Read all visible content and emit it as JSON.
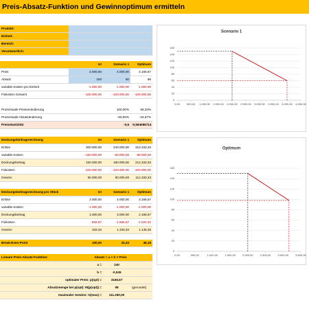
{
  "sheet": {
    "title": "Preis-Absatz-Funktion und Gewinnoptimum ermitteln",
    "info": [
      "Produkt:",
      "Einheit:",
      "Bereich:",
      "Verantwortlich:"
    ],
    "sections": [
      {
        "columns": [
          "Ist",
          "Szenario 1",
          "Optimum"
        ],
        "rows": [
          {
            "label": "Preis",
            "values": [
              "2.000,00",
              "4.000,00",
              "3.166,67"
            ]
          },
          {
            "label": "Absatz",
            "values": [
              "150",
              "60",
              "98"
            ]
          },
          {
            "label": "variable Kosten pro Einheit",
            "values": [
              "-1.000,00",
              "-1.000,00",
              "-1.000,00"
            ]
          },
          {
            "label": "Fixkosten Gesamt",
            "values": [
              "-100.000,00",
              "-100.000,00",
              "-100.000,00"
            ]
          }
        ]
      },
      {
        "rows": [
          {
            "label": "Prozentuale Preisveränderung",
            "values": [
              null,
              "100,00%",
              "58,33%"
            ]
          },
          {
            "label": "Prozentuale Absatzänderung",
            "values": [
              null,
              "-60,00%",
              "-34,67%"
            ]
          },
          {
            "label": "Preiselastizität",
            "values": [
              null,
              "-0,6",
              "-0,594085714"
            ]
          }
        ]
      },
      {
        "label": "Deckungsbeitragsrechnung",
        "columns": [
          "Ist",
          "Szenario 1",
          "Optimum"
        ],
        "rows": [
          {
            "label": "Erlöse",
            "values": [
              "300.000,00",
              "240.000,00",
              "310.333,33"
            ]
          },
          {
            "label": "variable Kosten",
            "values": [
              "-150.000,00",
              "-60.000,00",
              "-98.000,00"
            ]
          },
          {
            "label": "Deckungsbeitrag",
            "values": [
              "150.000,00",
              "180.000,00",
              "212.333,33"
            ]
          },
          {
            "label": "Fixkosten",
            "values": [
              "-100.000,00",
              "-100.000,00",
              "-100.000,00"
            ]
          },
          {
            "label": "Gewinn",
            "values": [
              "50.000,00",
              "80.000,00",
              "112.333,33"
            ]
          }
        ]
      },
      {
        "label": "Deckungsbeitragsrechnung pro Stück",
        "columns": [
          "Ist",
          "Szenario 1",
          "Optimum"
        ],
        "rows": [
          {
            "label": "Erlöse",
            "values": [
              "2.000,00",
              "4.000,00",
              "3.166,67"
            ]
          },
          {
            "label": "variable Kosten",
            "values": [
              "-1.000,00",
              "-1.000,00",
              "-1.000,00"
            ]
          },
          {
            "label": "Deckungsbeitrag",
            "values": [
              "1.000,00",
              "3.000,00",
              "2.166,67"
            ]
          },
          {
            "label": "Fixkosten",
            "values": [
              "-666,67",
              "-1.666,67",
              "-1.020,41"
            ]
          },
          {
            "label": "Gewinn",
            "values": [
              "333,33",
              "1.333,33",
              "1.146,26"
            ]
          }
        ]
      },
      {
        "rows": [
          {
            "label": "Break-Even-Point",
            "values": [
              "100,00",
              "33,33",
              "46,15"
            ]
          }
        ]
      }
    ],
    "function": {
      "label": "Lineare Preis-Absatz-Funktion:",
      "formula": "Absatz = a + b × Preis",
      "rows": [
        {
          "label": "a =",
          "value": "240"
        },
        {
          "label": "b =",
          "value": "-0,045"
        },
        {
          "label": "optimaler Preis: p(opt) =",
          "value": "3166,67"
        },
        {
          "label": "Absatzmenge bei p(opt): M(p(opt)) =",
          "value": "98",
          "note": "(gerundet)"
        },
        {
          "label": "maximaler Gewinn: G(max) =",
          "value": "111.250,00"
        }
      ]
    }
  },
  "chart_data": [
    {
      "type": "line",
      "title": "Scenario 1",
      "x": [
        2000,
        4000
      ],
      "series": [
        {
          "color": "#c00000",
          "values": [
            150,
            60
          ]
        }
      ],
      "guide_colors": [
        "#000000",
        "#c00000"
      ],
      "xlim": [
        0,
        4500
      ],
      "ylim": [
        0,
        160
      ],
      "grid": true,
      "xticks": [
        {
          "value": 0,
          "label": "0,00"
        },
        {
          "value": 500,
          "label": "500,00"
        },
        {
          "value": 1000,
          "label": "1.000,00"
        },
        {
          "value": 1500,
          "label": "1.500,00"
        },
        {
          "value": 2000,
          "label": "2.000,00"
        },
        {
          "value": 2500,
          "label": "2.500,00"
        },
        {
          "value": 3000,
          "label": "3.000,00"
        },
        {
          "value": 3500,
          "label": "3.500,00"
        },
        {
          "value": 4000,
          "label": "4.000,00"
        },
        {
          "value": 4500,
          "label": "4.500,00"
        }
      ],
      "yticks": [
        0,
        20,
        40,
        60,
        80,
        100,
        120,
        140,
        160
      ]
    },
    {
      "type": "line",
      "title": "Optimum",
      "x": [
        2000,
        3166.67
      ],
      "series": [
        {
          "color": "#c00000",
          "values": [
            150,
            98
          ]
        }
      ],
      "guide_colors": [
        "#000000",
        "#c00000"
      ],
      "xlim": [
        0,
        3500
      ],
      "ylim": [
        0,
        160
      ],
      "grid": true,
      "xticks": [
        {
          "value": 0,
          "label": "0,00"
        },
        {
          "value": 500,
          "label": "500,00"
        },
        {
          "value": 1000,
          "label": "1.000,00"
        },
        {
          "value": 1500,
          "label": "1.500,00"
        },
        {
          "value": 2000,
          "label": "2.000,00"
        },
        {
          "value": 2500,
          "label": "2.500,00"
        },
        {
          "value": 3000,
          "label": "3.000,00"
        },
        {
          "value": 3500,
          "label": "3.500,00"
        }
      ],
      "yticks": [
        0,
        20,
        40,
        60,
        80,
        100,
        120,
        140,
        160
      ]
    }
  ]
}
